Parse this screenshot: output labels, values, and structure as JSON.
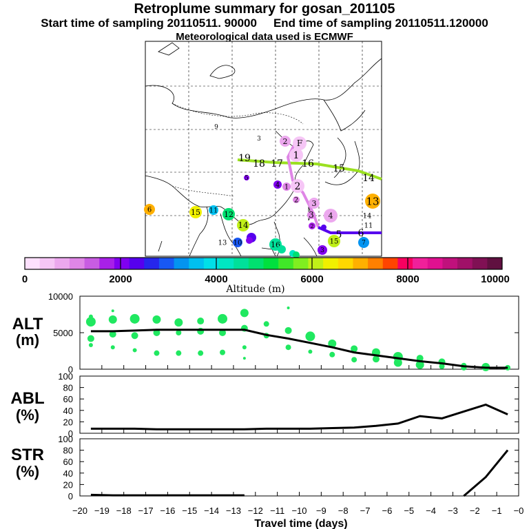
{
  "header": {
    "title": "Retroplume summary for gosan_201105",
    "start_label": "Start time of sampling 20110511. 90000",
    "end_label": "End time of sampling 20110511.120000",
    "met_label": "Meteorological data used is ECMWF"
  },
  "map": {
    "colorbar_ticks": [
      "0",
      "2000",
      "4000",
      "6000",
      "8000",
      "10000"
    ],
    "colorbar_label": "Altitude (m)",
    "colorbar_colors": [
      "#fde0fd",
      "#f6c6f6",
      "#eca8ee",
      "#df86e6",
      "#c85ce2",
      "#a820e8",
      "#8000f0",
      "#5600ee",
      "#2626ec",
      "#1858f4",
      "#0494f0",
      "#00c0f0",
      "#00e0e8",
      "#00e6c2",
      "#00e09a",
      "#00e070",
      "#00e03e",
      "#40e828",
      "#80ee20",
      "#c0f018",
      "#f0f000",
      "#ffd800",
      "#ffb000",
      "#ff8000",
      "#ff4400",
      "#f80060",
      "#f0209a",
      "#e01090",
      "#c0107c",
      "#a01068",
      "#801054",
      "#601040"
    ],
    "marker_labels": [
      "9",
      "3",
      "2",
      "F",
      "1",
      "19",
      "18",
      "17",
      "16",
      "15",
      "14",
      "5",
      "4",
      "1",
      "2",
      "3",
      "2",
      "3",
      "4",
      "5",
      "6",
      "13",
      "6",
      "15",
      "11",
      "12",
      "14",
      "13",
      "10",
      "16",
      "3",
      "2",
      "14",
      "11",
      "7",
      "15"
    ]
  },
  "panels": {
    "alt_label": "ALT",
    "alt_unit": "(m)",
    "abl_label": "ABL",
    "abl_unit": "(%)",
    "str_label": "STR",
    "str_unit": "(%)",
    "xlabel": "Travel time (days)"
  },
  "chart_data": [
    {
      "type": "line",
      "title": "ALT",
      "ylabel": "(m)",
      "xlabel": "Travel time (days)",
      "ylim": [
        0,
        10000
      ],
      "ytick_labels": [
        "10000",
        "5000",
        "0"
      ],
      "ytick_values": [
        10000,
        5000,
        0
      ],
      "x": [
        -19.5,
        -18.5,
        -17.5,
        -16.5,
        -15.5,
        -14.5,
        -13.5,
        -12.5,
        -11.5,
        -10.5,
        -9.5,
        -8.5,
        -7.5,
        -6.5,
        -5.5,
        -4.5,
        -3.5,
        -2.5,
        -1.5,
        -0.5
      ],
      "values": [
        5200,
        5200,
        5300,
        5400,
        5400,
        5400,
        5400,
        5400,
        4700,
        4200,
        3600,
        3000,
        2300,
        1900,
        1500,
        1100,
        800,
        400,
        200,
        200
      ],
      "scatter": [
        {
          "x": -19.5,
          "y": 6500,
          "s": 7
        },
        {
          "x": -19.5,
          "y": 4200,
          "s": 5
        },
        {
          "x": -19.5,
          "y": 3300,
          "s": 3
        },
        {
          "x": -19.5,
          "y": 7200,
          "s": 3
        },
        {
          "x": -18.5,
          "y": 6800,
          "s": 6
        },
        {
          "x": -18.5,
          "y": 4800,
          "s": 5
        },
        {
          "x": -18.5,
          "y": 3000,
          "s": 3
        },
        {
          "x": -18.5,
          "y": 8000,
          "s": 2
        },
        {
          "x": -17.5,
          "y": 6900,
          "s": 7
        },
        {
          "x": -17.5,
          "y": 4600,
          "s": 5
        },
        {
          "x": -17.5,
          "y": 2600,
          "s": 3
        },
        {
          "x": -16.5,
          "y": 6800,
          "s": 6
        },
        {
          "x": -16.5,
          "y": 5000,
          "s": 5
        },
        {
          "x": -16.5,
          "y": 2200,
          "s": 4
        },
        {
          "x": -15.5,
          "y": 6400,
          "s": 6
        },
        {
          "x": -15.5,
          "y": 5000,
          "s": 4
        },
        {
          "x": -15.5,
          "y": 2200,
          "s": 4
        },
        {
          "x": -14.5,
          "y": 6600,
          "s": 5
        },
        {
          "x": -14.5,
          "y": 5200,
          "s": 5
        },
        {
          "x": -14.5,
          "y": 2200,
          "s": 4
        },
        {
          "x": -13.5,
          "y": 6900,
          "s": 7
        },
        {
          "x": -13.5,
          "y": 5000,
          "s": 5
        },
        {
          "x": -13.5,
          "y": 2300,
          "s": 4
        },
        {
          "x": -12.5,
          "y": 7700,
          "s": 6
        },
        {
          "x": -12.5,
          "y": 5600,
          "s": 5
        },
        {
          "x": -12.5,
          "y": 3000,
          "s": 3
        },
        {
          "x": -12.5,
          "y": 1500,
          "s": 2
        },
        {
          "x": -11.5,
          "y": 6200,
          "s": 4
        },
        {
          "x": -11.5,
          "y": 4600,
          "s": 4
        },
        {
          "x": -10.5,
          "y": 5300,
          "s": 5
        },
        {
          "x": -10.5,
          "y": 3000,
          "s": 4
        },
        {
          "x": -10.5,
          "y": 8400,
          "s": 2
        },
        {
          "x": -9.5,
          "y": 4500,
          "s": 7
        },
        {
          "x": -9.5,
          "y": 2400,
          "s": 3
        },
        {
          "x": -8.5,
          "y": 3500,
          "s": 6
        },
        {
          "x": -8.5,
          "y": 2000,
          "s": 4
        },
        {
          "x": -7.5,
          "y": 2800,
          "s": 5
        },
        {
          "x": -7.5,
          "y": 1300,
          "s": 4
        },
        {
          "x": -6.5,
          "y": 2300,
          "s": 6
        },
        {
          "x": -6.5,
          "y": 1400,
          "s": 5
        },
        {
          "x": -5.5,
          "y": 1700,
          "s": 7
        },
        {
          "x": -5.5,
          "y": 900,
          "s": 6
        },
        {
          "x": -4.5,
          "y": 1500,
          "s": 5
        },
        {
          "x": -4.5,
          "y": 600,
          "s": 6
        },
        {
          "x": -3.5,
          "y": 1000,
          "s": 5
        },
        {
          "x": -3.5,
          "y": 400,
          "s": 4
        },
        {
          "x": -2.5,
          "y": 500,
          "s": 4
        },
        {
          "x": -2.5,
          "y": 200,
          "s": 4
        },
        {
          "x": -1.5,
          "y": 300,
          "s": 6
        },
        {
          "x": -1.5,
          "y": 150,
          "s": 4
        },
        {
          "x": -0.5,
          "y": 200,
          "s": 4
        }
      ]
    },
    {
      "type": "line",
      "title": "ABL",
      "ylabel": "(%)",
      "ylim": [
        0,
        100
      ],
      "ytick_labels": [
        "100",
        "80",
        "60",
        "40",
        "20",
        "0"
      ],
      "ytick_values": [
        100,
        80,
        60,
        40,
        20,
        0
      ],
      "x": [
        -19.5,
        -18.5,
        -17.5,
        -16.5,
        -15.5,
        -14.5,
        -13.5,
        -12.5,
        -11.5,
        -10.5,
        -9.5,
        -8.5,
        -7.5,
        -6.5,
        -5.5,
        -4.5,
        -3.5,
        -2.5,
        -1.5,
        -0.5
      ],
      "values": [
        8,
        8,
        8,
        7,
        7,
        7,
        7,
        7,
        8,
        8,
        8,
        9,
        10,
        13,
        17,
        30,
        26,
        38,
        50,
        33
      ]
    },
    {
      "type": "line",
      "title": "STR",
      "ylabel": "(%)",
      "ylim": [
        0,
        100
      ],
      "ytick_labels": [
        "100",
        "80",
        "60",
        "40",
        "20",
        "0"
      ],
      "ytick_values": [
        100,
        80,
        60,
        40,
        20,
        0
      ],
      "xlim": [
        -20,
        0
      ],
      "xtick_labels": [
        "−20",
        "−19",
        "−18",
        "−17",
        "−16",
        "−15",
        "−14",
        "−13",
        "−12",
        "−11",
        "−10",
        "−9",
        "−8",
        "−7",
        "−6",
        "−5",
        "−4",
        "−3",
        "−2",
        "−1",
        "−0"
      ],
      "xtick_values": [
        -20,
        -19,
        -18,
        -17,
        -16,
        -15,
        -14,
        -13,
        -12,
        -11,
        -10,
        -9,
        -8,
        -7,
        -6,
        -5,
        -4,
        -3,
        -2,
        -1,
        0
      ],
      "x": [
        -19.5,
        -18.5,
        -17.5,
        -16.5,
        -15.5,
        -14.5,
        -13.5,
        -12.5,
        -2.5,
        -1.5,
        -0.5
      ],
      "values": [
        2,
        1,
        1,
        1,
        1,
        1,
        1,
        1,
        0,
        33,
        80
      ]
    }
  ]
}
